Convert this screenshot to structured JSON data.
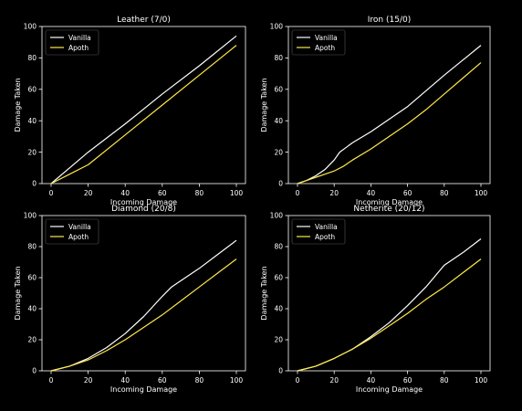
{
  "figure": {
    "background": "#000000",
    "foreground": "#ffffff"
  },
  "series_colors": {
    "Vanilla": "#ffffff",
    "Apoth": "#ffe84a"
  },
  "chart_data": [
    {
      "type": "line",
      "title": "Leather (7/0)",
      "xlabel": "Incoming Damage",
      "ylabel": "Damage Taken",
      "xlim": [
        0,
        100
      ],
      "ylim": [
        0,
        100
      ],
      "xticks": [
        0,
        20,
        40,
        60,
        80,
        100
      ],
      "yticks": [
        0,
        20,
        40,
        60,
        80,
        100
      ],
      "legend": "top-left",
      "grid": false,
      "series": [
        {
          "name": "Vanilla",
          "x": [
            0,
            10,
            20,
            40,
            60,
            80,
            100
          ],
          "y": [
            0,
            10,
            20,
            38,
            57,
            75,
            94
          ]
        },
        {
          "name": "Apoth",
          "x": [
            0,
            10,
            20,
            40,
            60,
            80,
            100
          ],
          "y": [
            0,
            6,
            12,
            31,
            50,
            69,
            88
          ]
        }
      ]
    },
    {
      "type": "line",
      "title": "Iron (15/0)",
      "xlabel": "Incoming Damage",
      "ylabel": "Damage Taken",
      "xlim": [
        0,
        100
      ],
      "ylim": [
        0,
        100
      ],
      "xticks": [
        0,
        20,
        40,
        60,
        80,
        100
      ],
      "yticks": [
        0,
        20,
        40,
        60,
        80,
        100
      ],
      "legend": "top-left",
      "grid": false,
      "series": [
        {
          "name": "Vanilla",
          "x": [
            0,
            5,
            10,
            15,
            20,
            23,
            30,
            40,
            60,
            80,
            100
          ],
          "y": [
            0,
            2,
            5,
            9,
            15,
            20,
            26,
            33,
            49,
            69,
            88
          ]
        },
        {
          "name": "Apoth",
          "x": [
            0,
            5,
            10,
            15,
            20,
            25,
            30,
            40,
            50,
            60,
            70,
            80,
            90,
            100
          ],
          "y": [
            0,
            2,
            4,
            6,
            8,
            11,
            15,
            22,
            30,
            38,
            47,
            57,
            67,
            77
          ]
        }
      ]
    },
    {
      "type": "line",
      "title": "Diamond (20/8)",
      "xlabel": "Incoming Damage",
      "ylabel": "Damage Taken",
      "xlim": [
        0,
        100
      ],
      "ylim": [
        0,
        100
      ],
      "xticks": [
        0,
        20,
        40,
        60,
        80,
        100
      ],
      "yticks": [
        0,
        20,
        40,
        60,
        80,
        100
      ],
      "legend": "top-left",
      "grid": false,
      "series": [
        {
          "name": "Vanilla",
          "x": [
            0,
            10,
            20,
            30,
            40,
            50,
            60,
            65,
            70,
            80,
            90,
            100
          ],
          "y": [
            0,
            3,
            8,
            15,
            24,
            35,
            48,
            54,
            58,
            66,
            75,
            84
          ]
        },
        {
          "name": "Apoth",
          "x": [
            0,
            10,
            20,
            30,
            40,
            50,
            60,
            70,
            80,
            90,
            100
          ],
          "y": [
            0,
            3,
            7,
            13,
            20,
            28,
            36,
            45,
            54,
            63,
            72
          ]
        }
      ]
    },
    {
      "type": "line",
      "title": "Netherite (20/12)",
      "xlabel": "Incoming Damage",
      "ylabel": "Damage Taken",
      "xlim": [
        0,
        100
      ],
      "ylim": [
        0,
        100
      ],
      "xticks": [
        0,
        20,
        40,
        60,
        80,
        100
      ],
      "yticks": [
        0,
        20,
        40,
        60,
        80,
        100
      ],
      "legend": "top-left",
      "grid": false,
      "series": [
        {
          "name": "Vanilla",
          "x": [
            0,
            10,
            20,
            30,
            40,
            50,
            60,
            70,
            80,
            90,
            100
          ],
          "y": [
            0,
            3,
            8,
            14,
            22,
            31,
            42,
            54,
            68,
            76,
            85
          ]
        },
        {
          "name": "Apoth",
          "x": [
            0,
            10,
            20,
            30,
            40,
            50,
            60,
            70,
            80,
            90,
            100
          ],
          "y": [
            0,
            3,
            8,
            14,
            21,
            29,
            37,
            46,
            54,
            63,
            72
          ]
        }
      ]
    }
  ]
}
